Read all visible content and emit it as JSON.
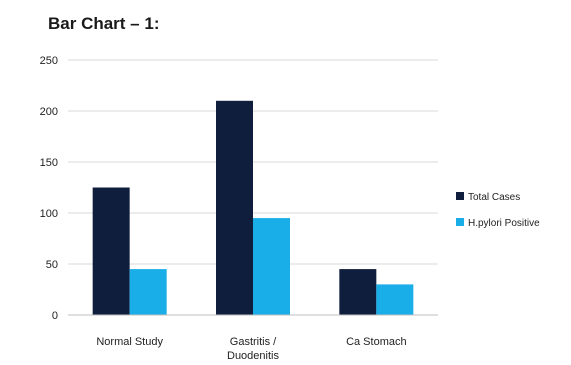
{
  "chart_data": {
    "type": "bar",
    "title": "Bar Chart – 1:",
    "categories": [
      "Normal Study",
      "Gastritis / Duodenitis",
      "Ca Stomach"
    ],
    "category_lines": [
      [
        "Normal Study"
      ],
      [
        "Gastritis /",
        "Duodenitis"
      ],
      [
        "Ca Stomach"
      ]
    ],
    "series": [
      {
        "name": "Total Cases",
        "values": [
          125,
          210,
          45
        ],
        "color": "#0f1e3c"
      },
      {
        "name": "H.pylori Positive",
        "values": [
          45,
          95,
          30
        ],
        "color": "#19aee8"
      }
    ],
    "ylim": [
      0,
      250
    ],
    "yticks": [
      0,
      50,
      100,
      150,
      200,
      250
    ],
    "grid": true,
    "legend": "right"
  }
}
